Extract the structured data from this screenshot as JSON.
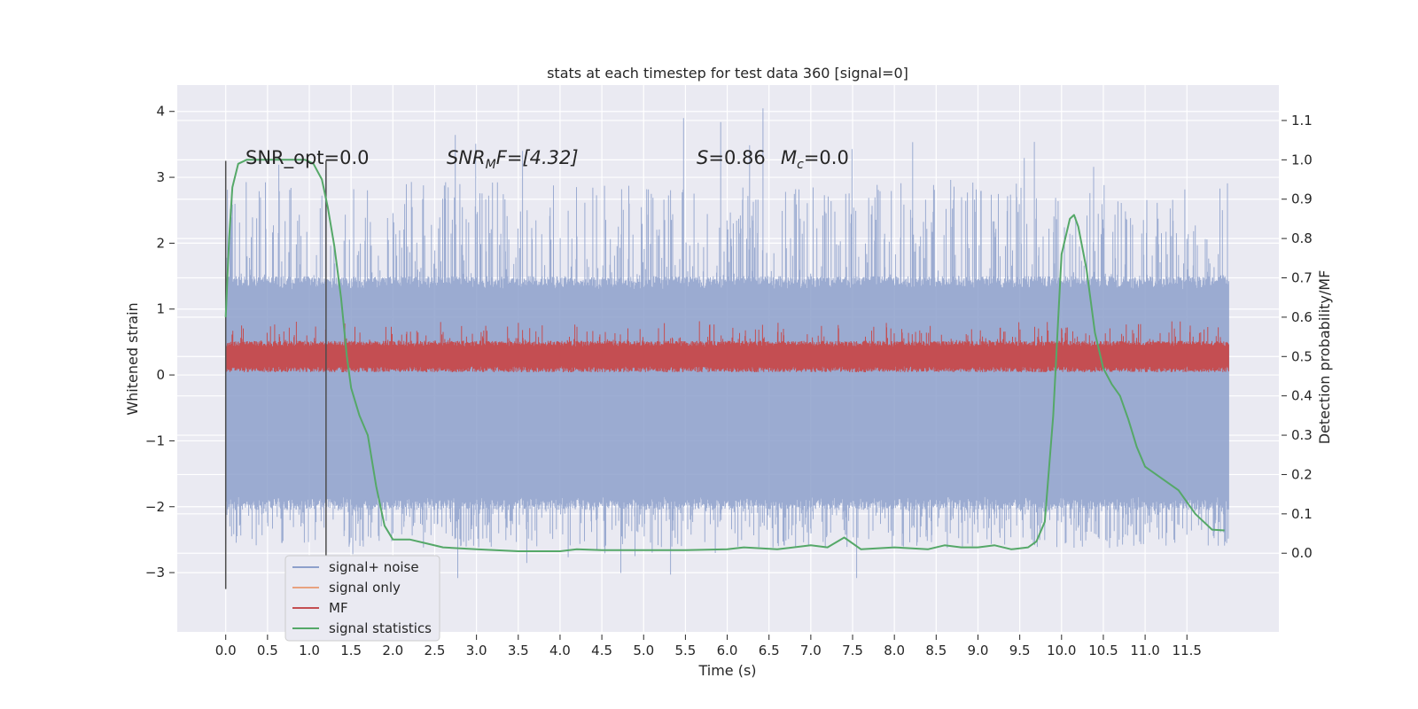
{
  "chart_data": {
    "type": "line",
    "title": "stats at each timestep for test data 360 [signal=0]",
    "xlabel": "Time (s)",
    "ylabel": "Whitened strain",
    "y2label": "Detection probability/MF",
    "xlim": [
      -0.58,
      12.6
    ],
    "ylim": [
      -3.9,
      4.4
    ],
    "y2lim": [
      -0.2,
      1.19
    ],
    "x_ticks": [
      "0.0",
      "0.5",
      "1.0",
      "1.5",
      "2.0",
      "2.5",
      "3.0",
      "3.5",
      "4.0",
      "4.5",
      "5.0",
      "5.5",
      "6.0",
      "6.5",
      "7.0",
      "7.5",
      "8.0",
      "8.5",
      "9.0",
      "9.5",
      "10.0",
      "10.5",
      "11.0",
      "11.5"
    ],
    "y_ticks": [
      "4",
      "3",
      "2",
      "1",
      "0",
      "−1",
      "−2",
      "−3"
    ],
    "y2_ticks": [
      "1.1",
      "1.0",
      "0.9",
      "0.8",
      "0.7",
      "0.6",
      "0.5",
      "0.4",
      "0.3",
      "0.2",
      "0.1",
      "0.0"
    ],
    "grid": true,
    "legend_position": "lower-left",
    "annotations": {
      "snr_opt": "SNR_opt=0.0",
      "snr_mf": "SNR",
      "snr_mf_sub": "M",
      "snr_mf_tail": "F=[4.32]",
      "s_label": "S",
      "s_value": "=0.86",
      "mc_label": "M",
      "mc_sub": "c",
      "mc_value": "=0.0"
    },
    "window_lines_x": [
      0.0,
      1.2
    ],
    "series": [
      {
        "name": "signal+ noise",
        "color": "#8da0cb",
        "axis": "left",
        "t_range": [
          0,
          12.0
        ],
        "envelope": {
          "core_low": -2.05,
          "core_high": 1.5,
          "spike_low": -3.1,
          "spike_high": 4.1
        }
      },
      {
        "name": "signal only",
        "color": "#e8a27f",
        "axis": "left",
        "values": []
      },
      {
        "name": "MF",
        "color": "#c44e52",
        "axis": "right",
        "t_range": [
          0,
          12.0
        ],
        "envelope": {
          "low": 0.46,
          "high": 0.54,
          "spike_high": 0.59
        }
      },
      {
        "name": "signal statistics",
        "color": "#55a868",
        "axis": "right",
        "x": [
          0.0,
          0.04,
          0.08,
          0.15,
          0.25,
          0.4,
          0.6,
          0.8,
          0.95,
          1.05,
          1.15,
          1.22,
          1.3,
          1.38,
          1.45,
          1.5,
          1.6,
          1.7,
          1.8,
          1.9,
          2.0,
          2.2,
          2.4,
          2.6,
          3.0,
          3.5,
          4.0,
          4.2,
          4.5,
          5.0,
          5.5,
          6.0,
          6.2,
          6.6,
          7.0,
          7.2,
          7.4,
          7.6,
          8.0,
          8.4,
          8.6,
          8.8,
          9.0,
          9.2,
          9.4,
          9.6,
          9.7,
          9.8,
          9.9,
          10.0,
          10.1,
          10.15,
          10.2,
          10.3,
          10.4,
          10.5,
          10.6,
          10.7,
          10.8,
          10.9,
          11.0,
          11.2,
          11.4,
          11.6,
          11.8,
          11.95
        ],
        "values": [
          0.6,
          0.8,
          0.93,
          0.99,
          1.0,
          1.0,
          1.0,
          1.0,
          1.0,
          0.99,
          0.95,
          0.88,
          0.78,
          0.65,
          0.5,
          0.42,
          0.35,
          0.3,
          0.17,
          0.07,
          0.035,
          0.035,
          0.025,
          0.015,
          0.01,
          0.005,
          0.005,
          0.01,
          0.008,
          0.008,
          0.008,
          0.01,
          0.015,
          0.01,
          0.02,
          0.015,
          0.04,
          0.01,
          0.015,
          0.01,
          0.02,
          0.015,
          0.015,
          0.02,
          0.01,
          0.015,
          0.03,
          0.08,
          0.35,
          0.76,
          0.85,
          0.86,
          0.83,
          0.72,
          0.56,
          0.47,
          0.43,
          0.4,
          0.34,
          0.27,
          0.22,
          0.19,
          0.16,
          0.1,
          0.06,
          0.058
        ]
      }
    ]
  }
}
